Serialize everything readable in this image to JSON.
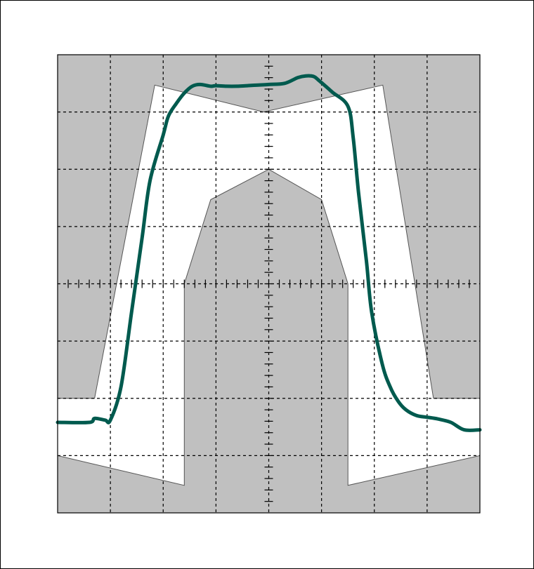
{
  "chart_data": {
    "type": "line",
    "title": "",
    "xlabel": "",
    "ylabel": "",
    "grid": true,
    "grid_divisions": {
      "x": 8,
      "y": 8
    },
    "minor_ticks_per_division": 5,
    "xlim": [
      -4,
      4
    ],
    "ylim": [
      -4,
      4
    ],
    "colors": {
      "mask_fill": "#c0c0c0",
      "open_region": "#ffffff",
      "grid": "#000000",
      "trace": "#005a4e",
      "mask_edge": "#555555"
    },
    "mask_open_region": {
      "x": [
        -4,
        -3.3,
        -2.16,
        -2.16,
        -0.1,
        2.16,
        2.16,
        3.12,
        4,
        4,
        1.5,
        1.5,
        1.0,
        0,
        -1.1,
        -1.6,
        -1.6,
        -4
      ],
      "y": [
        -2.0,
        -2.0,
        3.47,
        3.47,
        3.0,
        3.47,
        3.47,
        -2.0,
        -2.0,
        -3.0,
        -3.52,
        0,
        1.47,
        2.0,
        1.47,
        0,
        -3.52,
        -3.0
      ]
    },
    "series": [
      {
        "x": [
          -4,
          -3.4,
          -3.3,
          -3.1,
          -3.0,
          -2.8,
          -2.6,
          -2.4,
          -2.25,
          -2.0,
          -1.9,
          -1.75,
          -1.6,
          -1.45,
          -1.3,
          -1.1,
          -1.0,
          -0.8,
          -0.6,
          -0.4,
          -0.2,
          0,
          0.3,
          0.55,
          0.7,
          0.85,
          0.95,
          1.2,
          1.5,
          1.6,
          1.7,
          1.85,
          1.95,
          2.15,
          2.3,
          2.45,
          2.6,
          2.8,
          3.0,
          3.2,
          3.45,
          3.7,
          4
        ],
        "y": [
          -2.42,
          -2.42,
          -2.35,
          -2.38,
          -2.38,
          -1.8,
          -0.5,
          0.8,
          1.8,
          2.6,
          2.93,
          3.15,
          3.33,
          3.45,
          3.48,
          3.45,
          3.46,
          3.45,
          3.45,
          3.46,
          3.47,
          3.48,
          3.5,
          3.6,
          3.63,
          3.62,
          3.55,
          3.35,
          3.1,
          2.55,
          1.6,
          0.4,
          -0.5,
          -1.4,
          -1.8,
          -2.05,
          -2.2,
          -2.3,
          -2.33,
          -2.36,
          -2.42,
          -2.55,
          -2.55
        ]
      }
    ]
  }
}
